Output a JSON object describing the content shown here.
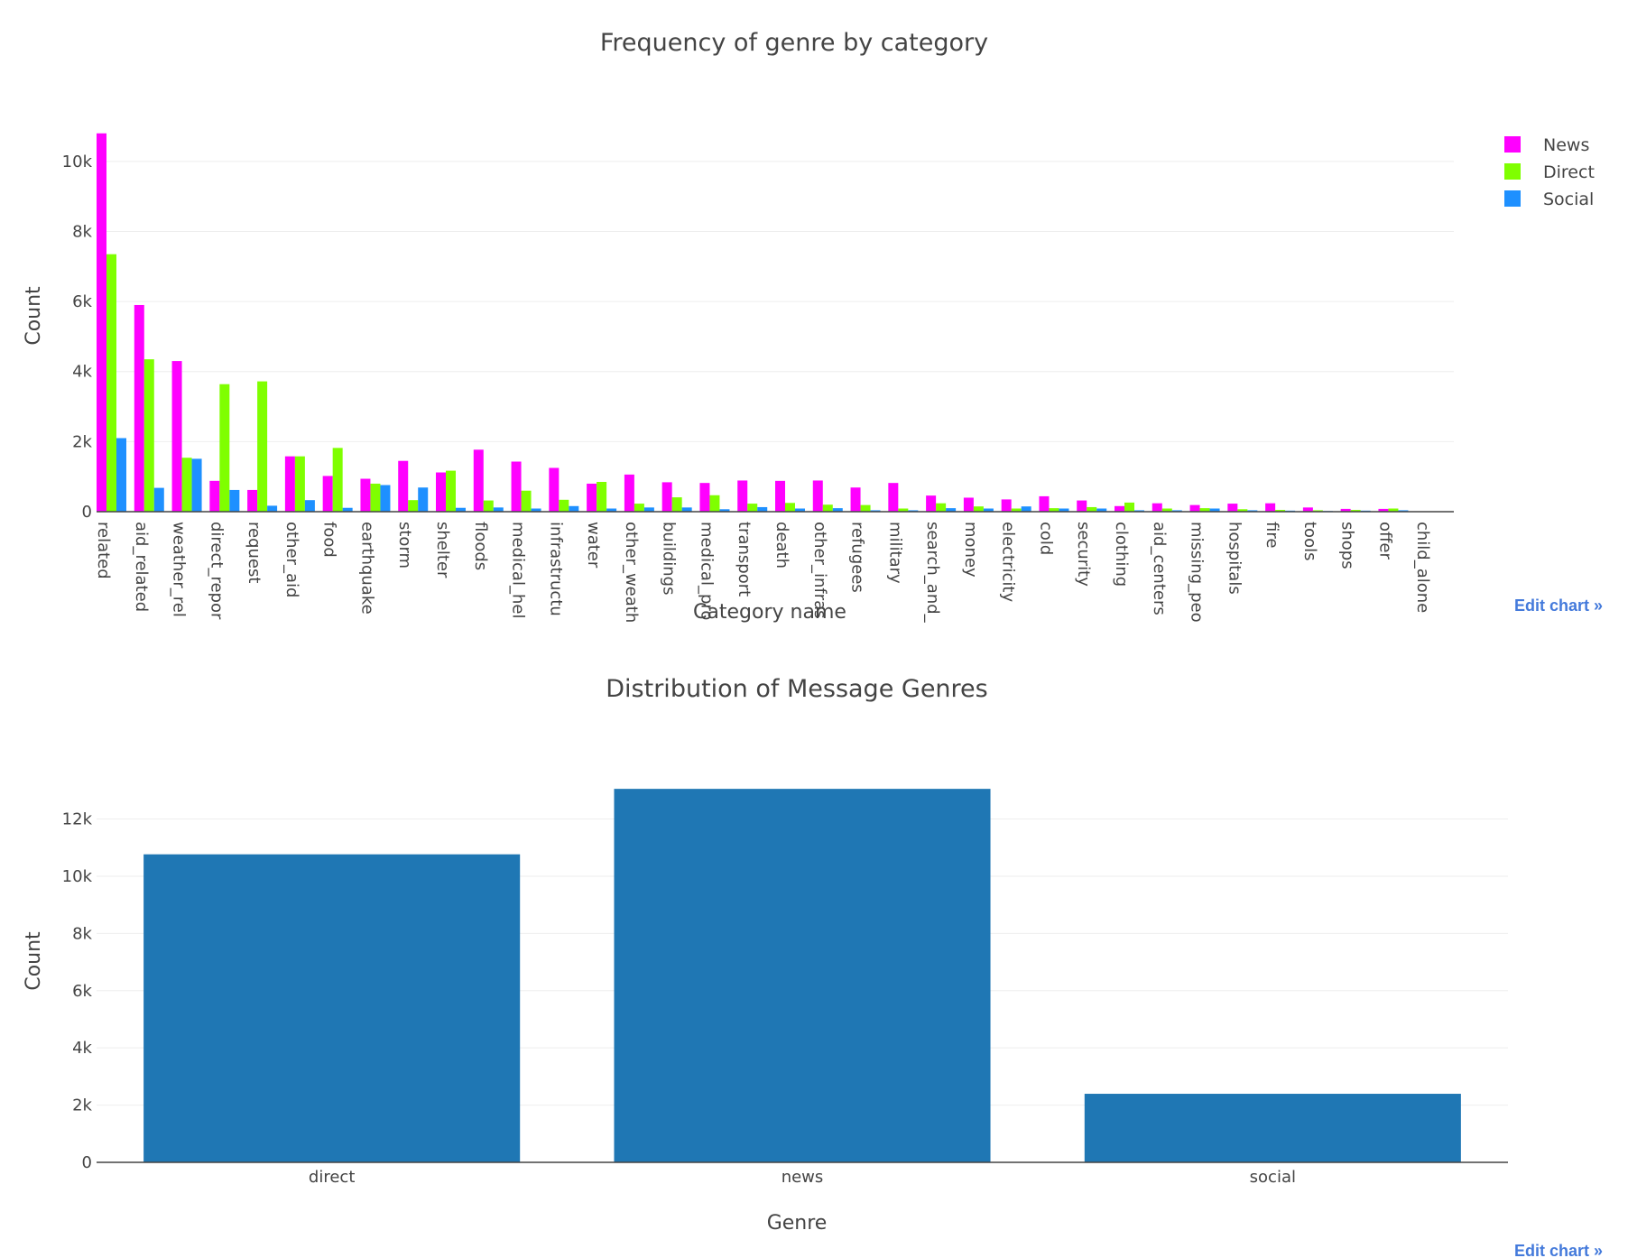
{
  "edit_chart_label": "Edit chart »",
  "chart_data": [
    {
      "type": "bar",
      "title": "Frequency of genre by category",
      "xlabel": "Category name",
      "ylabel": "Count",
      "ylim": [
        0,
        11000
      ],
      "yticks": [
        0,
        2000,
        4000,
        6000,
        8000,
        10000
      ],
      "ytick_labels": [
        "0",
        "2k",
        "4k",
        "6k",
        "8k",
        "10k"
      ],
      "legend_position": "top-right",
      "categories": [
        "related",
        "aid_related",
        "weather_rel",
        "direct_repor",
        "request",
        "other_aid",
        "food",
        "earthquake",
        "storm",
        "shelter",
        "floods",
        "medical_hel",
        "infrastructu",
        "water",
        "other_weath",
        "buildings",
        "medical_pro",
        "transport",
        "death",
        "other_infras",
        "refugees",
        "military",
        "search_and_",
        "money",
        "electricity",
        "cold",
        "security",
        "clothing",
        "aid_centers",
        "missing_peo",
        "hospitals",
        "fire",
        "tools",
        "shops",
        "offer",
        "child_alone"
      ],
      "series": [
        {
          "name": "News",
          "color": "#ff00ff",
          "values": [
            10800,
            5900,
            4300,
            880,
            620,
            1580,
            1020,
            940,
            1450,
            1120,
            1770,
            1430,
            1250,
            800,
            1060,
            840,
            820,
            890,
            880,
            890,
            690,
            820,
            460,
            400,
            350,
            440,
            320,
            160,
            240,
            190,
            230,
            240,
            120,
            80,
            80,
            0
          ]
        },
        {
          "name": "Direct",
          "color": "#7fff00",
          "values": [
            7350,
            4350,
            1540,
            3640,
            3720,
            1580,
            1820,
            800,
            330,
            1170,
            320,
            600,
            340,
            850,
            230,
            410,
            470,
            230,
            250,
            200,
            190,
            90,
            240,
            150,
            90,
            100,
            130,
            260,
            90,
            100,
            70,
            50,
            40,
            50,
            90,
            0
          ]
        },
        {
          "name": "Social",
          "color": "#1e90ff",
          "values": [
            2100,
            680,
            1510,
            620,
            170,
            330,
            110,
            760,
            690,
            110,
            120,
            90,
            160,
            90,
            120,
            120,
            70,
            130,
            90,
            100,
            40,
            40,
            100,
            90,
            150,
            90,
            90,
            40,
            40,
            90,
            40,
            30,
            20,
            30,
            40,
            0
          ]
        }
      ]
    },
    {
      "type": "bar",
      "title": "Distribution of Message Genres",
      "xlabel": "Genre",
      "ylabel": "Count",
      "ylim": [
        0,
        13500
      ],
      "yticks": [
        0,
        2000,
        4000,
        6000,
        8000,
        10000,
        12000
      ],
      "ytick_labels": [
        "0",
        "2k",
        "4k",
        "6k",
        "8k",
        "10k",
        "12k"
      ],
      "categories": [
        "direct",
        "news",
        "social"
      ],
      "values": [
        10766,
        13054,
        2396
      ],
      "color": "#1f77b4"
    }
  ]
}
